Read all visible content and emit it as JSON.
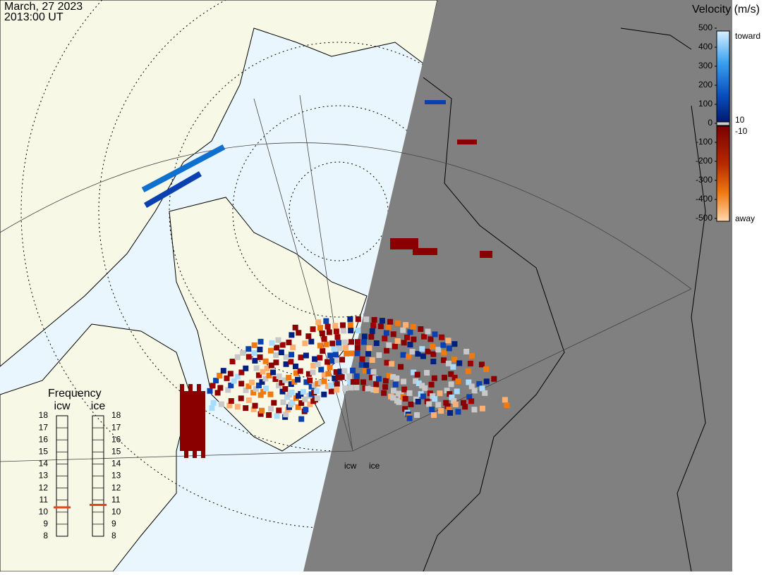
{
  "header": {
    "date": "March, 27 2023",
    "time": "2013:00 UT"
  },
  "colorbar": {
    "title": "Velocity (m/s)",
    "lim": [
      -500,
      500
    ],
    "ticks": [
      500,
      400,
      300,
      200,
      100,
      0,
      -100,
      -200,
      -300,
      -400,
      -500
    ],
    "thresholds": [
      10,
      -10
    ],
    "top_label": "toward",
    "bottom_label": "away"
  },
  "frequency": {
    "title": "Frequency",
    "lim": [
      8,
      18
    ],
    "ticks": [
      18,
      17,
      16,
      15,
      14,
      13,
      12,
      11,
      10,
      9,
      8
    ],
    "radars": [
      {
        "name": "icw",
        "value": 10.4
      },
      {
        "name": "ice",
        "value": 10.6
      }
    ]
  },
  "radar_labels": [
    "icw",
    "ice"
  ]
}
